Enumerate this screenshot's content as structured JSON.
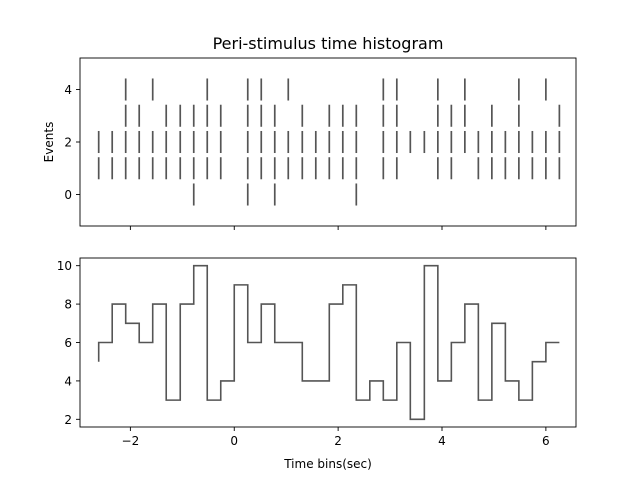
{
  "chart_data": [
    {
      "type": "eventplot",
      "title": "Peri-stimulus time histogram",
      "ylabel": "Events",
      "xlabel": "",
      "xlim": [
        -2.97,
        6.58
      ],
      "ylim": [
        -1.2,
        5.2
      ],
      "xticks": [
        -2,
        0,
        2,
        4,
        6
      ],
      "xtick_labels": [
        "−2",
        "0",
        "2",
        "4",
        "6"
      ],
      "yticks": [
        0,
        2,
        4
      ],
      "ytick_labels": [
        "0",
        "2",
        "4"
      ],
      "grid": false,
      "line_color": "#555555",
      "events": {
        "0": [
          -0.78,
          0.26,
          0.78,
          2.35
        ],
        "1": [
          -2.61,
          -2.35,
          -2.09,
          -1.83,
          -1.57,
          -1.31,
          -1.04,
          -0.78,
          -0.52,
          -0.26,
          0.26,
          0.52,
          0.78,
          1.04,
          1.31,
          1.57,
          1.83,
          2.09,
          2.35,
          2.87,
          3.13,
          3.92,
          4.18,
          4.7,
          4.96,
          5.22,
          5.48,
          5.74,
          6.0,
          6.26
        ],
        "2": [
          -2.61,
          -2.35,
          -2.09,
          -1.83,
          -1.57,
          -1.31,
          -1.04,
          -0.78,
          -0.52,
          -0.26,
          0.26,
          0.52,
          0.78,
          1.04,
          1.31,
          1.57,
          1.83,
          2.09,
          2.35,
          2.87,
          3.13,
          3.39,
          3.66,
          3.92,
          4.18,
          4.44,
          4.7,
          4.96,
          5.22,
          5.48,
          5.74,
          6.0,
          6.26
        ],
        "3": [
          -2.09,
          -1.83,
          -1.31,
          -1.04,
          -0.78,
          -0.52,
          -0.26,
          0.26,
          0.52,
          0.78,
          1.31,
          1.83,
          2.09,
          2.35,
          2.87,
          3.13,
          3.92,
          4.18,
          4.44,
          4.96,
          5.48,
          6.26
        ],
        "4": [
          -2.09,
          -1.57,
          -0.52,
          0.26,
          0.52,
          1.04,
          2.87,
          3.13,
          3.92,
          4.44,
          5.48,
          6.0
        ]
      }
    },
    {
      "type": "step",
      "title": "",
      "xlabel": "Time bins(sec)",
      "ylabel": "",
      "xlim": [
        -2.97,
        6.58
      ],
      "ylim": [
        1.6,
        10.4
      ],
      "xticks": [
        -2,
        0,
        2,
        4,
        6
      ],
      "xtick_labels": [
        "−2",
        "0",
        "2",
        "4",
        "6"
      ],
      "yticks": [
        2,
        4,
        6,
        8,
        10
      ],
      "ytick_labels": [
        "2",
        "4",
        "6",
        "8",
        "10"
      ],
      "grid": false,
      "line_color": "#555555",
      "x": [
        -2.61,
        -2.35,
        -2.09,
        -1.83,
        -1.57,
        -1.31,
        -1.04,
        -0.78,
        -0.52,
        -0.26,
        0.0,
        0.26,
        0.52,
        0.78,
        1.04,
        1.31,
        1.57,
        1.83,
        2.09,
        2.35,
        2.61,
        2.87,
        3.13,
        3.39,
        3.66,
        3.92,
        4.18,
        4.44,
        4.7,
        4.96,
        5.22,
        5.48,
        5.74,
        6.0,
        6.26
      ],
      "y": [
        5,
        6,
        8,
        7,
        6,
        8,
        3,
        8,
        10,
        3,
        4,
        9,
        6,
        8,
        6,
        6,
        4,
        4,
        8,
        9,
        3,
        4,
        3,
        6,
        2,
        10,
        4,
        6,
        8,
        3,
        7,
        4,
        3,
        5,
        6
      ]
    }
  ]
}
